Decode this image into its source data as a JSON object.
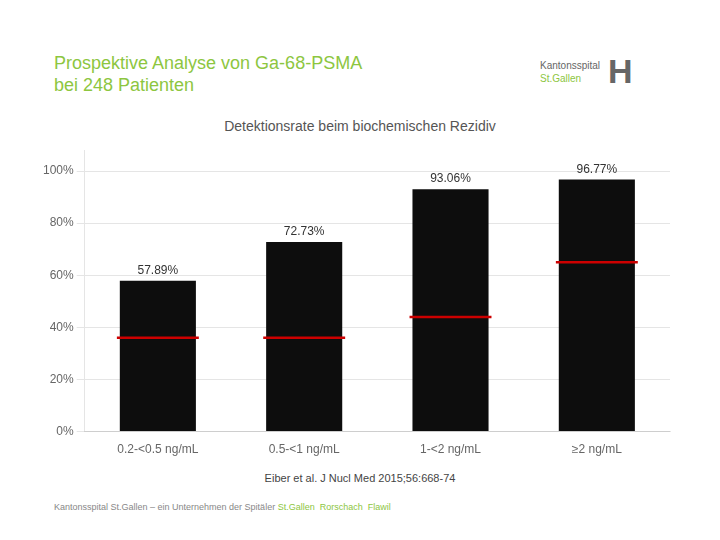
{
  "chart_data": {
    "type": "bar",
    "title": {
      "text": [
        "Prospektive Analyse von Ga-68-PSMA",
        "bei 248 Patienten"
      ],
      "color": "#8dc63f"
    },
    "subtitle": {
      "text": "Detektionsrate beim biochemischen Rezidiv",
      "color": "#555555"
    },
    "categories": [
      "0.2-<0.5 ng/mL",
      "0.5-<1 ng/mL",
      "1-<2 ng/mL",
      "≥2 ng/mL"
    ],
    "series": [
      {
        "type": "bar",
        "color": "#0d0d0d",
        "values": [
          57.89,
          72.73,
          93.06,
          96.77
        ],
        "data_labels": true,
        "value_labels": [
          "57.89%",
          "72.73%",
          "93.06%",
          "96.77%"
        ]
      },
      {
        "type": "line",
        "marker": "line",
        "line_style": "none",
        "color": "#cc0000",
        "values": [
          36.0,
          36.0,
          44.0,
          65.0
        ]
      }
    ],
    "ylim": [
      0,
      108
    ],
    "yticks": [
      {
        "value": 0,
        "label": "0%"
      },
      {
        "value": 20,
        "label": "20%"
      },
      {
        "value": 40,
        "label": "40%"
      },
      {
        "value": 60,
        "label": "60%"
      },
      {
        "value": 80,
        "label": "80%"
      },
      {
        "value": 100,
        "label": "100%"
      }
    ],
    "grid": true,
    "annotations": [
      {
        "text": "Kantonsspital",
        "color": "#666666"
      },
      {
        "text": "St.Gallen",
        "color": "#8dc63f"
      },
      {
        "text": "H",
        "color": "#666666"
      },
      {
        "text": "Eiber et al. J Nucl Med 2015;56:668-74",
        "color": "#444444"
      },
      {
        "text": "Kantonsspital St.Gallen – ein Unternehmen der Spitäler ",
        "color": "#888888"
      },
      {
        "text": "St.Gallen  Rorschach  Flawil",
        "color": "#8dc63f"
      }
    ]
  }
}
